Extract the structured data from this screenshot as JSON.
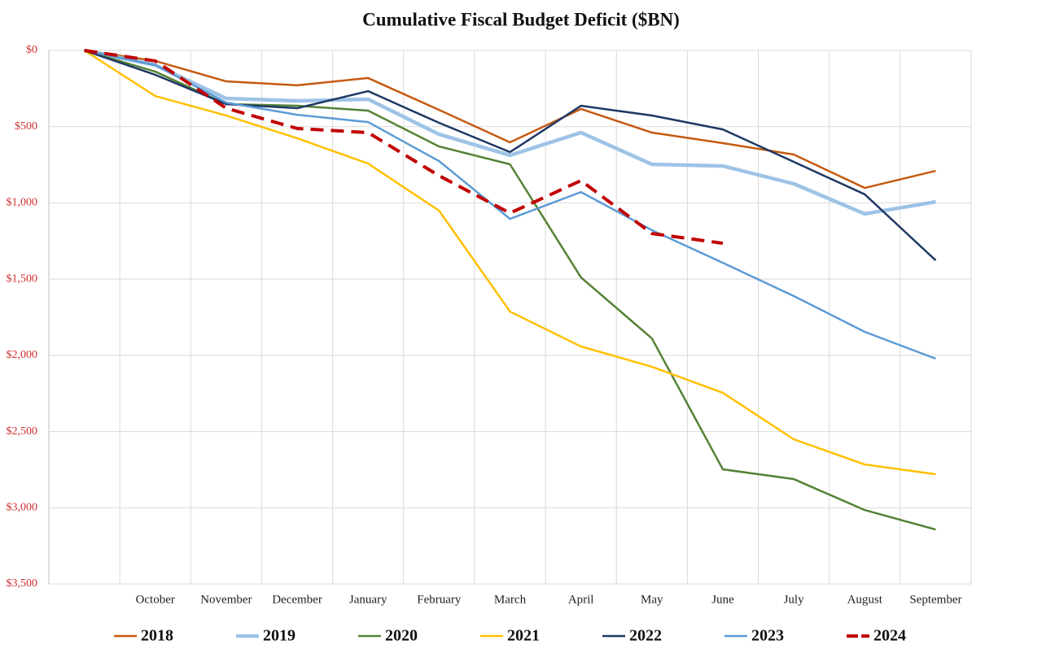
{
  "chart_data": {
    "type": "line",
    "title": "Cumulative Fiscal Budget Deficit ($BN)",
    "categories": [
      null,
      "October",
      "November",
      "December",
      "January",
      "February",
      "March",
      "April",
      "May",
      "June",
      "July",
      "August",
      "September"
    ],
    "ylim": [
      0,
      3500
    ],
    "y_reversed": true,
    "yticks": [
      {
        "value": 0,
        "label": "$0"
      },
      {
        "value": 500,
        "label": "$500"
      },
      {
        "value": 1000,
        "label": "$1,000"
      },
      {
        "value": 1500,
        "label": "$1,500"
      },
      {
        "value": 2000,
        "label": "$2,000"
      },
      {
        "value": 2500,
        "label": "$2,500"
      },
      {
        "value": 3000,
        "label": "$3,000"
      },
      {
        "value": 3500,
        "label": "$3,500"
      }
    ],
    "grid": true,
    "legend": "bottom",
    "series": [
      {
        "name": "2018",
        "color": "#c55a11",
        "style": "solid",
        "values": [
          0,
          69,
          203,
          229,
          181,
          390,
          603,
          384,
          539,
          608,
          683,
          902,
          790
        ]
      },
      {
        "name": "2019",
        "color": "#9dc3e6",
        "style": "thick",
        "values": [
          0,
          96,
          315,
          331,
          320,
          550,
          688,
          539,
          747,
          758,
          875,
          1072,
          993
        ]
      },
      {
        "name": "2020",
        "color": "#548235",
        "style": "solid",
        "values": [
          0,
          139,
          352,
          363,
          395,
          630,
          747,
          1489,
          1889,
          2748,
          2812,
          3015,
          3143
        ]
      },
      {
        "name": "2021",
        "color": "#ffc000",
        "style": "solid",
        "values": [
          0,
          299,
          427,
          576,
          742,
          1051,
          1713,
          1942,
          2075,
          2246,
          2551,
          2716,
          2780
        ]
      },
      {
        "name": "2022",
        "color": "#1f3864",
        "style": "solid",
        "values": [
          0,
          160,
          352,
          379,
          267,
          475,
          667,
          363,
          427,
          518,
          731,
          944,
          1377
        ]
      },
      {
        "name": "2023",
        "color": "#5b9bd5",
        "style": "solid",
        "values": [
          0,
          96,
          342,
          422,
          470,
          726,
          1105,
          929,
          1179,
          1393,
          1611,
          1846,
          2022
        ]
      },
      {
        "name": "2024",
        "color": "#c00000",
        "style": "dashed",
        "values": [
          0,
          69,
          379,
          512,
          539,
          822,
          1067,
          854,
          1201,
          1265,
          null,
          null,
          null
        ]
      }
    ]
  }
}
